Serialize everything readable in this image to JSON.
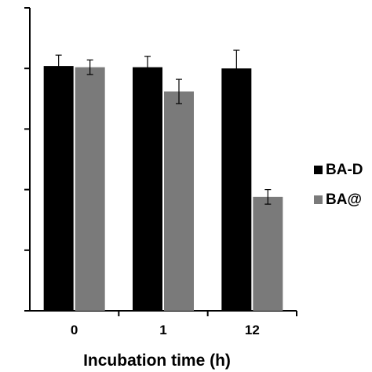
{
  "chart_data": {
    "type": "bar",
    "title": "",
    "xlabel": "Incubation time (h)",
    "ylabel": "",
    "categories": [
      "0",
      "1",
      "12"
    ],
    "series": [
      {
        "name": "BA-D",
        "color": "#000000",
        "values": [
          101,
          100.5,
          100
        ],
        "errors": [
          4.5,
          4.5,
          7.5
        ]
      },
      {
        "name": "BA@",
        "color": "#7a7a7a",
        "values": [
          100.5,
          90.5,
          47
        ],
        "errors": [
          3,
          5,
          3
        ]
      }
    ],
    "ylim": [
      0,
      125
    ],
    "yticks": [
      0,
      25,
      50,
      75,
      100,
      125
    ],
    "grid": false,
    "legend_position": "right"
  }
}
